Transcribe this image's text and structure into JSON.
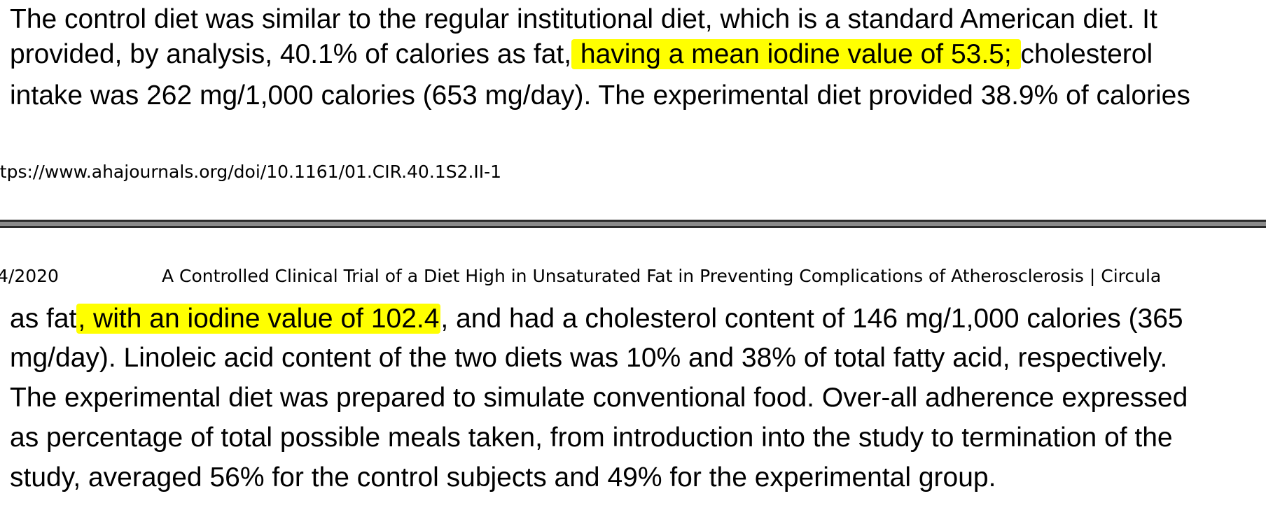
{
  "page1": {
    "lines": [
      {
        "before": "The control diet was similar to the regular institutional diet, which is a standard American diet. It",
        "highlight": "",
        "after": ""
      },
      {
        "before": "provided, by analysis, 40.1% of calories as fat,",
        "highlight": " having a mean iodine value of 53.5; ",
        "after": "cholesterol"
      },
      {
        "before": "intake was 262 mg/1,000 calories (653 mg/day). The experimental diet provided 38.9% of calories",
        "highlight": "",
        "after": ""
      }
    ],
    "footer_url": "ttps://www.ahajournals.org/doi/10.1161/01.CIR.40.1S2.II-1"
  },
  "page2": {
    "header": {
      "date": "4/2020",
      "title": "A Controlled Clinical Trial of a Diet High in Unsaturated Fat in Preventing Complications of Atherosclerosis | Circula"
    },
    "lines": [
      {
        "before": "as fat",
        "highlight": ", with an iodine value of 102.4",
        "after": ", and had a cholesterol content of 146 mg/1,000 calories (365"
      },
      {
        "before": "mg/day). Linoleic acid content of the two diets was 10% and 38% of total fatty acid, respectively.",
        "highlight": "",
        "after": ""
      },
      {
        "before": "The experimental diet was prepared to simulate conventional food. Over-all adherence expressed",
        "highlight": "",
        "after": ""
      },
      {
        "before": "as percentage of total possible meals taken, from introduction into the study to termination of the",
        "highlight": "",
        "after": ""
      },
      {
        "before": "study, averaged 56% for the control subjects and 49% for the experimental group.",
        "highlight": "",
        "after": ""
      }
    ]
  },
  "colors": {
    "highlight": "#ffff00",
    "divider": "#8a8a8a",
    "text": "#000000"
  }
}
